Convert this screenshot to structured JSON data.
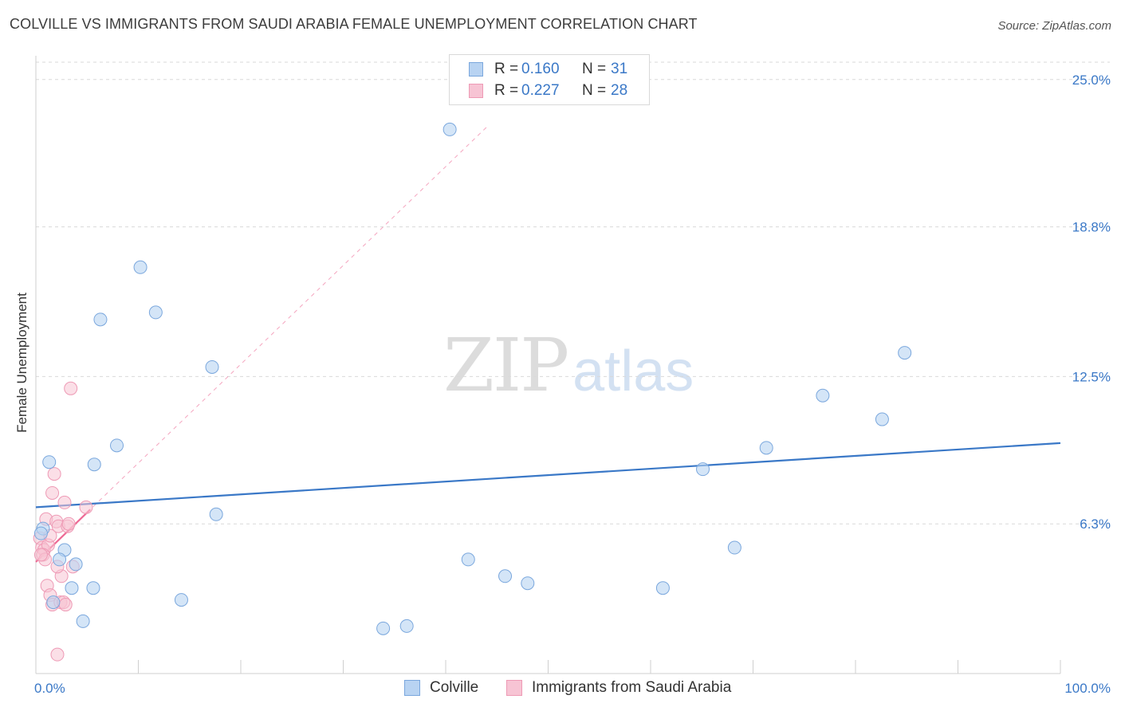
{
  "title": "COLVILLE VS IMMIGRANTS FROM SAUDI ARABIA FEMALE UNEMPLOYMENT CORRELATION CHART",
  "source": "Source: ZipAtlas.com",
  "watermark": {
    "zip": "ZIP",
    "atlas": "atlas"
  },
  "colors": {
    "blue": "#3a78c7",
    "blue_fill": "#b8d3f2",
    "pink": "#ee6a95",
    "pink_fill": "#f7c4d4",
    "grid": "#d9d9d9"
  },
  "legend_top": {
    "rows": [
      {
        "r_label": "R =",
        "r_value": "0.160",
        "n_label": "N =",
        "n_value": "31"
      },
      {
        "r_label": "R =",
        "r_value": "0.227",
        "n_label": "N =",
        "n_value": "28"
      }
    ]
  },
  "legend_bottom": {
    "series1": "Colville",
    "series2": "Immigrants from Saudi Arabia"
  },
  "chart_data": {
    "type": "scatter",
    "title": "COLVILLE VS IMMIGRANTS FROM SAUDI ARABIA FEMALE UNEMPLOYMENT CORRELATION CHART",
    "xlabel": "",
    "ylabel": "Female Unemployment",
    "xlim": [
      0,
      100
    ],
    "ylim": [
      0,
      26
    ],
    "x_tick_labels": [
      "0.0%",
      "100.0%"
    ],
    "y_ticks": [
      6.3,
      12.5,
      18.8,
      25.0
    ],
    "y_tick_labels": [
      "6.3%",
      "12.5%",
      "18.8%",
      "25.0%"
    ],
    "series": [
      {
        "name": "Colville",
        "r": 0.16,
        "n": 31,
        "points": [
          [
            0.7,
            6.1
          ],
          [
            1.3,
            8.9
          ],
          [
            2.8,
            5.2
          ],
          [
            2.3,
            4.8
          ],
          [
            3.9,
            4.6
          ],
          [
            5.7,
            8.8
          ],
          [
            3.5,
            3.6
          ],
          [
            5.6,
            3.6
          ],
          [
            7.9,
            9.6
          ],
          [
            6.3,
            14.9
          ],
          [
            10.2,
            17.1
          ],
          [
            11.7,
            15.2
          ],
          [
            17.2,
            12.9
          ],
          [
            17.6,
            6.7
          ],
          [
            14.2,
            3.1
          ],
          [
            1.7,
            3.0
          ],
          [
            4.6,
            2.2
          ],
          [
            0.5,
            5.9
          ],
          [
            33.9,
            1.9
          ],
          [
            36.2,
            2.0
          ],
          [
            42.2,
            4.8
          ],
          [
            45.8,
            4.1
          ],
          [
            48.0,
            3.8
          ],
          [
            40.4,
            22.9
          ],
          [
            61.2,
            3.6
          ],
          [
            65.1,
            8.6
          ],
          [
            68.2,
            5.3
          ],
          [
            71.3,
            9.5
          ],
          [
            76.8,
            11.7
          ],
          [
            82.6,
            10.7
          ],
          [
            84.8,
            13.5
          ]
        ],
        "trend": {
          "x": [
            0,
            100
          ],
          "y": [
            7.0,
            9.7
          ]
        }
      },
      {
        "name": "Immigrants from Saudi Arabia",
        "r": 0.227,
        "n": 28,
        "points": [
          [
            0.4,
            5.7
          ],
          [
            0.6,
            5.3
          ],
          [
            0.8,
            5.2
          ],
          [
            1.0,
            6.5
          ],
          [
            1.2,
            5.4
          ],
          [
            1.4,
            5.8
          ],
          [
            1.6,
            7.6
          ],
          [
            1.8,
            8.4
          ],
          [
            2.0,
            6.4
          ],
          [
            2.2,
            6.2
          ],
          [
            2.5,
            4.1
          ],
          [
            2.8,
            7.2
          ],
          [
            3.1,
            6.2
          ],
          [
            3.4,
            12.0
          ],
          [
            3.6,
            4.5
          ],
          [
            2.1,
            4.5
          ],
          [
            1.1,
            3.7
          ],
          [
            1.4,
            3.3
          ],
          [
            1.6,
            2.9
          ],
          [
            2.4,
            3.0
          ],
          [
            2.7,
            3.0
          ],
          [
            2.9,
            2.9
          ],
          [
            3.2,
            6.3
          ],
          [
            4.9,
            7.0
          ],
          [
            0.7,
            5.0
          ],
          [
            0.9,
            4.8
          ],
          [
            0.5,
            5.0
          ],
          [
            2.1,
            0.8
          ]
        ],
        "trend": {
          "x": [
            0,
            5.3
          ],
          "y": [
            4.7,
            6.9
          ]
        },
        "trend_extended": {
          "x": [
            0,
            44
          ],
          "y": [
            4.7,
            23.0
          ]
        }
      }
    ]
  }
}
